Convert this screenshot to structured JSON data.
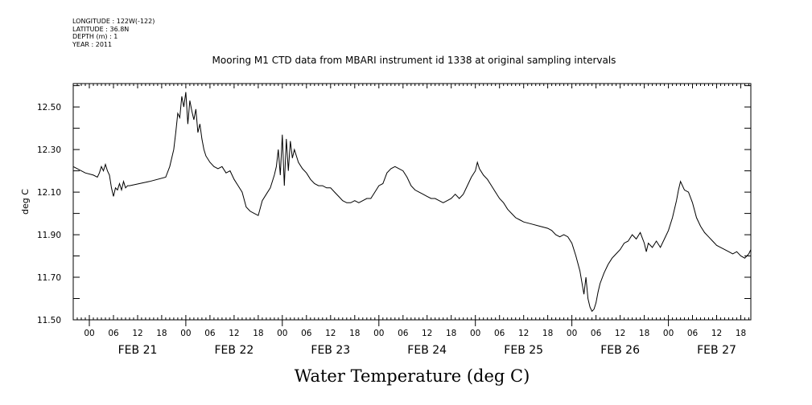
{
  "meta": {
    "longitude": "LONGITUDE : 122W(-122)",
    "latitude": "LATITUDE : 36.8N",
    "depth": "DEPTH (m) : 1",
    "year": "YEAR : 2011"
  },
  "chart_data": {
    "type": "line",
    "title": "Mooring M1 CTD data from MBARI instrument id 1338 at original sampling intervals",
    "xlabel": "Water Temperature (deg C)",
    "ylabel": "deg C",
    "ylim": [
      11.5,
      12.61
    ],
    "yticks": [
      "12.50",
      "12.30",
      "12.10",
      "11.90",
      "11.70",
      "11.50"
    ],
    "xlim_hours": [
      -4,
      164.5
    ],
    "hour_tick_labels": [
      "00",
      "06",
      "12",
      "18",
      "00",
      "06",
      "12",
      "18",
      "00",
      "06",
      "12",
      "18",
      "00",
      "06",
      "12",
      "18",
      "00",
      "06",
      "12",
      "18",
      "00",
      "06",
      "12",
      "18",
      "00",
      "06",
      "12",
      "18"
    ],
    "date_labels": [
      "FEB 21",
      "FEB 22",
      "FEB 23",
      "FEB 24",
      "FEB 25",
      "FEB 26",
      "FEB 27"
    ],
    "x_unit": "hours since FEB 21 00:00 (2011)",
    "series": [
      {
        "name": "Water Temperature",
        "color": "#000000",
        "points": [
          [
            -4.7,
            12.36
          ],
          [
            -4.5,
            12.24
          ],
          [
            -4.2,
            12.22
          ],
          [
            -3,
            12.21
          ],
          [
            -1,
            12.19
          ],
          [
            1,
            12.18
          ],
          [
            2,
            12.17
          ],
          [
            2.5,
            12.19
          ],
          [
            3,
            12.22
          ],
          [
            3.5,
            12.2
          ],
          [
            4,
            12.23
          ],
          [
            4.5,
            12.2
          ],
          [
            5,
            12.18
          ],
          [
            5.5,
            12.12
          ],
          [
            6,
            12.08
          ],
          [
            6.5,
            12.12
          ],
          [
            7,
            12.11
          ],
          [
            7.5,
            12.14
          ],
          [
            8,
            12.11
          ],
          [
            8.5,
            12.15
          ],
          [
            9,
            12.12
          ],
          [
            9.5,
            12.13
          ],
          [
            10,
            12.13
          ],
          [
            15,
            12.15
          ],
          [
            19,
            12.17
          ],
          [
            20,
            12.22
          ],
          [
            21,
            12.3
          ],
          [
            21.5,
            12.38
          ],
          [
            22,
            12.47
          ],
          [
            22.5,
            12.45
          ],
          [
            23,
            12.55
          ],
          [
            23.5,
            12.5
          ],
          [
            24,
            12.57
          ],
          [
            24.5,
            12.42
          ],
          [
            25,
            12.53
          ],
          [
            25.5,
            12.48
          ],
          [
            26,
            12.44
          ],
          [
            26.5,
            12.49
          ],
          [
            27,
            12.38
          ],
          [
            27.5,
            12.42
          ],
          [
            28,
            12.35
          ],
          [
            28.5,
            12.3
          ],
          [
            29,
            12.27
          ],
          [
            30,
            12.24
          ],
          [
            31,
            12.22
          ],
          [
            32,
            12.21
          ],
          [
            33,
            12.22
          ],
          [
            34,
            12.19
          ],
          [
            35,
            12.2
          ],
          [
            36,
            12.16
          ],
          [
            37,
            12.13
          ],
          [
            38,
            12.1
          ],
          [
            39,
            12.03
          ],
          [
            40,
            12.01
          ],
          [
            41,
            12.0
          ],
          [
            42,
            11.99
          ],
          [
            43,
            12.06
          ],
          [
            44,
            12.09
          ],
          [
            45,
            12.12
          ],
          [
            46,
            12.18
          ],
          [
            46.5,
            12.22
          ],
          [
            47,
            12.3
          ],
          [
            47.5,
            12.18
          ],
          [
            48,
            12.37
          ],
          [
            48.5,
            12.13
          ],
          [
            49,
            12.35
          ],
          [
            49.5,
            12.2
          ],
          [
            50,
            12.34
          ],
          [
            50.5,
            12.26
          ],
          [
            51,
            12.3
          ],
          [
            52,
            12.24
          ],
          [
            53,
            12.21
          ],
          [
            54,
            12.19
          ],
          [
            55,
            12.16
          ],
          [
            56,
            12.14
          ],
          [
            57,
            12.13
          ],
          [
            58,
            12.13
          ],
          [
            59,
            12.12
          ],
          [
            60,
            12.12
          ],
          [
            61,
            12.1
          ],
          [
            62,
            12.08
          ],
          [
            63,
            12.06
          ],
          [
            64,
            12.05
          ],
          [
            65,
            12.05
          ],
          [
            66,
            12.06
          ],
          [
            67,
            12.05
          ],
          [
            68,
            12.06
          ],
          [
            69,
            12.07
          ],
          [
            70,
            12.07
          ],
          [
            71,
            12.1
          ],
          [
            72,
            12.13
          ],
          [
            73,
            12.14
          ],
          [
            74,
            12.19
          ],
          [
            75,
            12.21
          ],
          [
            76,
            12.22
          ],
          [
            77,
            12.21
          ],
          [
            78,
            12.2
          ],
          [
            79,
            12.17
          ],
          [
            80,
            12.13
          ],
          [
            81,
            12.11
          ],
          [
            82,
            12.1
          ],
          [
            83,
            12.09
          ],
          [
            84,
            12.08
          ],
          [
            85,
            12.07
          ],
          [
            86,
            12.07
          ],
          [
            87,
            12.06
          ],
          [
            88,
            12.05
          ],
          [
            89,
            12.06
          ],
          [
            90,
            12.07
          ],
          [
            91,
            12.09
          ],
          [
            92,
            12.07
          ],
          [
            93,
            12.09
          ],
          [
            94,
            12.13
          ],
          [
            95,
            12.17
          ],
          [
            96,
            12.2
          ],
          [
            96.5,
            12.24
          ],
          [
            97,
            12.21
          ],
          [
            98,
            12.18
          ],
          [
            99,
            12.16
          ],
          [
            100,
            12.13
          ],
          [
            101,
            12.1
          ],
          [
            102,
            12.07
          ],
          [
            103,
            12.05
          ],
          [
            104,
            12.02
          ],
          [
            105,
            12.0
          ],
          [
            106,
            11.98
          ],
          [
            107,
            11.97
          ],
          [
            108,
            11.96
          ],
          [
            110,
            11.95
          ],
          [
            112,
            11.94
          ],
          [
            114,
            11.93
          ],
          [
            115,
            11.92
          ],
          [
            116,
            11.9
          ],
          [
            117,
            11.89
          ],
          [
            118,
            11.9
          ],
          [
            119,
            11.89
          ],
          [
            120,
            11.86
          ],
          [
            121,
            11.8
          ],
          [
            122,
            11.73
          ],
          [
            123,
            11.62
          ],
          [
            123.5,
            11.7
          ],
          [
            124,
            11.6
          ],
          [
            124.5,
            11.56
          ],
          [
            125,
            11.54
          ],
          [
            125.5,
            11.55
          ],
          [
            126,
            11.58
          ],
          [
            126.5,
            11.63
          ],
          [
            127,
            11.67
          ],
          [
            128,
            11.72
          ],
          [
            129,
            11.76
          ],
          [
            130,
            11.79
          ],
          [
            131,
            11.81
          ],
          [
            132,
            11.83
          ],
          [
            133,
            11.86
          ],
          [
            134,
            11.87
          ],
          [
            135,
            11.9
          ],
          [
            136,
            11.88
          ],
          [
            137,
            11.91
          ],
          [
            138,
            11.86
          ],
          [
            138.5,
            11.82
          ],
          [
            139,
            11.86
          ],
          [
            140,
            11.84
          ],
          [
            141,
            11.87
          ],
          [
            142,
            11.84
          ],
          [
            143,
            11.88
          ],
          [
            144,
            11.92
          ],
          [
            145,
            11.98
          ],
          [
            146,
            12.06
          ],
          [
            146.5,
            12.11
          ],
          [
            147,
            12.15
          ],
          [
            148,
            12.11
          ],
          [
            149,
            12.1
          ],
          [
            150,
            12.05
          ],
          [
            151,
            11.98
          ],
          [
            152,
            11.94
          ],
          [
            153,
            11.91
          ],
          [
            154,
            11.89
          ],
          [
            155,
            11.87
          ],
          [
            156,
            11.85
          ],
          [
            157,
            11.84
          ],
          [
            158,
            11.83
          ],
          [
            159,
            11.82
          ],
          [
            160,
            11.81
          ],
          [
            161,
            11.82
          ],
          [
            162,
            11.8
          ],
          [
            163,
            11.79
          ],
          [
            164,
            11.81
          ],
          [
            165,
            11.83
          ],
          [
            166,
            11.87
          ],
          [
            166.5,
            11.94
          ]
        ]
      }
    ],
    "grid": false,
    "legend": "none"
  }
}
